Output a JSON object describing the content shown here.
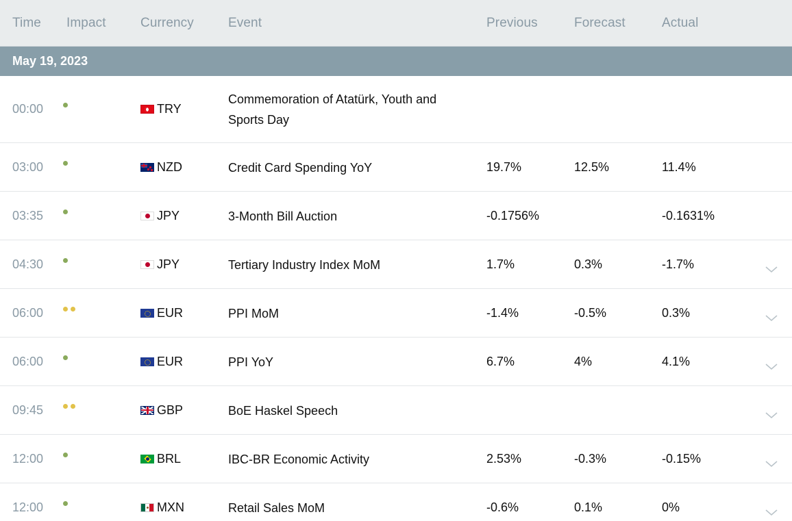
{
  "columns": {
    "time": "Time",
    "impact": "Impact",
    "currency": "Currency",
    "event": "Event",
    "previous": "Previous",
    "forecast": "Forecast",
    "actual": "Actual"
  },
  "date_header": "May 19, 2023",
  "colors": {
    "header_bg": "#e9eced",
    "date_bar_bg": "#889ea9",
    "impact_low": "#8aaa5c",
    "impact_medium": "#e2c24a",
    "muted_text": "#8a9aa5"
  },
  "rows": [
    {
      "time": "00:00",
      "impact": "low",
      "currency": "TRY",
      "flag": "turkey-flag-icon",
      "event": "Commemoration of Atatürk, Youth and Sports Day",
      "previous": "",
      "forecast": "",
      "actual": "",
      "expandable": false
    },
    {
      "time": "03:00",
      "impact": "low",
      "currency": "NZD",
      "flag": "new-zealand-flag-icon",
      "event": "Credit Card Spending YoY",
      "previous": "19.7%",
      "forecast": "12.5%",
      "actual": "11.4%",
      "expandable": false
    },
    {
      "time": "03:35",
      "impact": "low",
      "currency": "JPY",
      "flag": "japan-flag-icon",
      "event": "3-Month Bill Auction",
      "previous": "-0.1756%",
      "forecast": "",
      "actual": "-0.1631%",
      "expandable": false
    },
    {
      "time": "04:30",
      "impact": "low",
      "currency": "JPY",
      "flag": "japan-flag-icon",
      "event": "Tertiary Industry Index MoM",
      "previous": "1.7%",
      "forecast": "0.3%",
      "actual": "-1.7%",
      "expandable": true
    },
    {
      "time": "06:00",
      "impact": "medium",
      "currency": "EUR",
      "flag": "eu-flag-icon",
      "event": "PPI MoM",
      "previous": "-1.4%",
      "forecast": "-0.5%",
      "actual": "0.3%",
      "expandable": true
    },
    {
      "time": "06:00",
      "impact": "low",
      "currency": "EUR",
      "flag": "eu-flag-icon",
      "event": "PPI YoY",
      "previous": "6.7%",
      "forecast": "4%",
      "actual": "4.1%",
      "expandable": true
    },
    {
      "time": "09:45",
      "impact": "medium",
      "currency": "GBP",
      "flag": "uk-flag-icon",
      "event": "BoE Haskel Speech",
      "previous": "",
      "forecast": "",
      "actual": "",
      "expandable": true
    },
    {
      "time": "12:00",
      "impact": "low",
      "currency": "BRL",
      "flag": "brazil-flag-icon",
      "event": "IBC-BR Economic Activity",
      "previous": "2.53%",
      "forecast": "-0.3%",
      "actual": "-0.15%",
      "expandable": true
    },
    {
      "time": "12:00",
      "impact": "low",
      "currency": "MXN",
      "flag": "mexico-flag-icon",
      "event": "Retail Sales MoM",
      "previous": "-0.6%",
      "forecast": "0.1%",
      "actual": "0%",
      "expandable": true
    }
  ]
}
